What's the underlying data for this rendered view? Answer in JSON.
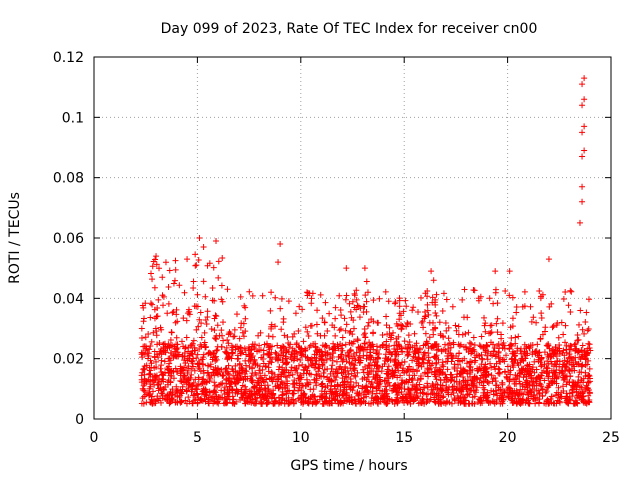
{
  "chart_data": {
    "type": "scatter",
    "title": "Day 099 of 2023, Rate Of TEC Index for receiver cn00",
    "xlabel": "GPS time / hours",
    "ylabel": "ROTI / TECUs",
    "xlim": [
      0,
      25
    ],
    "ylim": [
      0,
      0.12
    ],
    "xticks": [
      0,
      5,
      10,
      15,
      20,
      25
    ],
    "yticks": [
      0,
      0.02,
      0.04,
      0.06,
      0.08,
      0.1,
      0.12
    ],
    "xtick_labels": [
      "0",
      "5",
      "10",
      "15",
      "20",
      "25"
    ],
    "ytick_labels": [
      "0",
      "0.02",
      "0.04",
      "0.06",
      "0.08",
      "0.1",
      "0.12"
    ],
    "grid": true,
    "marker": "+",
    "color": "#ff0000",
    "series": [
      {
        "name": "ROTI",
        "x_range": [
          2.3,
          24.0
        ],
        "baseline_band": [
          0.005,
          0.025
        ],
        "notable_points": [
          {
            "x": 3.0,
            "y": 0.054
          },
          {
            "x": 3.3,
            "y": 0.047
          },
          {
            "x": 4.5,
            "y": 0.053
          },
          {
            "x": 5.1,
            "y": 0.06
          },
          {
            "x": 5.3,
            "y": 0.057
          },
          {
            "x": 5.9,
            "y": 0.059
          },
          {
            "x": 9.0,
            "y": 0.058
          },
          {
            "x": 8.9,
            "y": 0.052
          },
          {
            "x": 10.3,
            "y": 0.042
          },
          {
            "x": 12.2,
            "y": 0.05
          },
          {
            "x": 13.1,
            "y": 0.05
          },
          {
            "x": 16.3,
            "y": 0.049
          },
          {
            "x": 19.4,
            "y": 0.049
          },
          {
            "x": 20.1,
            "y": 0.049
          },
          {
            "x": 22.0,
            "y": 0.053
          },
          {
            "x": 23.5,
            "y": 0.065
          },
          {
            "x": 23.6,
            "y": 0.072
          },
          {
            "x": 23.6,
            "y": 0.077
          },
          {
            "x": 23.6,
            "y": 0.087
          },
          {
            "x": 23.7,
            "y": 0.089
          },
          {
            "x": 23.6,
            "y": 0.095
          },
          {
            "x": 23.7,
            "y": 0.097
          },
          {
            "x": 23.6,
            "y": 0.104
          },
          {
            "x": 23.7,
            "y": 0.106
          },
          {
            "x": 23.6,
            "y": 0.111
          },
          {
            "x": 23.7,
            "y": 0.113
          }
        ]
      }
    ]
  }
}
